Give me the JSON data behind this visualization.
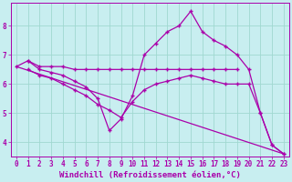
{
  "background_color": "#c8eef0",
  "grid_color": "#a0d8d0",
  "line_color": "#aa00aa",
  "marker": "+",
  "xlim": [
    -0.5,
    23.5
  ],
  "ylim": [
    3.5,
    8.8
  ],
  "yticks": [
    4,
    5,
    6,
    7,
    8
  ],
  "xticks": [
    0,
    1,
    2,
    3,
    4,
    5,
    6,
    7,
    8,
    9,
    10,
    11,
    12,
    13,
    14,
    15,
    16,
    17,
    18,
    19,
    20,
    21,
    22,
    23
  ],
  "xlabel": "Windchill (Refroidissement éolien,°C)",
  "lines": [
    {
      "x": [
        0,
        1,
        2,
        3,
        4,
        5,
        6,
        7,
        8,
        9,
        10,
        11,
        12,
        13,
        14,
        15,
        16,
        17,
        18,
        19
      ],
      "y": [
        6.6,
        6.8,
        6.6,
        6.6,
        6.6,
        6.5,
        6.5,
        6.5,
        6.5,
        6.5,
        6.5,
        6.5,
        6.5,
        6.5,
        6.5,
        6.5,
        6.5,
        6.5,
        6.5,
        6.5
      ]
    },
    {
      "x": [
        1,
        2,
        3,
        4,
        5,
        6,
        7,
        8,
        9,
        10,
        11,
        12,
        13,
        14,
        15,
        16,
        17,
        18,
        19,
        20,
        21,
        22,
        23
      ],
      "y": [
        6.8,
        6.5,
        6.4,
        6.3,
        6.1,
        5.9,
        5.5,
        4.4,
        4.8,
        5.6,
        7.0,
        7.4,
        7.8,
        8.0,
        8.5,
        7.8,
        7.5,
        7.3,
        7.0,
        6.5,
        5.0,
        3.9,
        3.6
      ]
    },
    {
      "x": [
        1,
        2,
        3,
        4,
        5,
        6,
        7,
        8,
        9,
        10,
        11,
        12,
        13,
        14,
        15,
        16,
        17,
        18,
        19,
        20,
        21,
        22,
        23
      ],
      "y": [
        6.5,
        6.3,
        6.2,
        6.0,
        5.8,
        5.6,
        5.3,
        5.1,
        4.85,
        5.4,
        5.8,
        6.0,
        6.1,
        6.2,
        6.3,
        6.2,
        6.1,
        6.0,
        6.0,
        6.0,
        5.0,
        3.9,
        3.6
      ]
    },
    {
      "x": [
        0,
        23
      ],
      "y": [
        6.6,
        3.6
      ]
    }
  ],
  "axis_fontsize": 6.5,
  "tick_fontsize": 5.5
}
